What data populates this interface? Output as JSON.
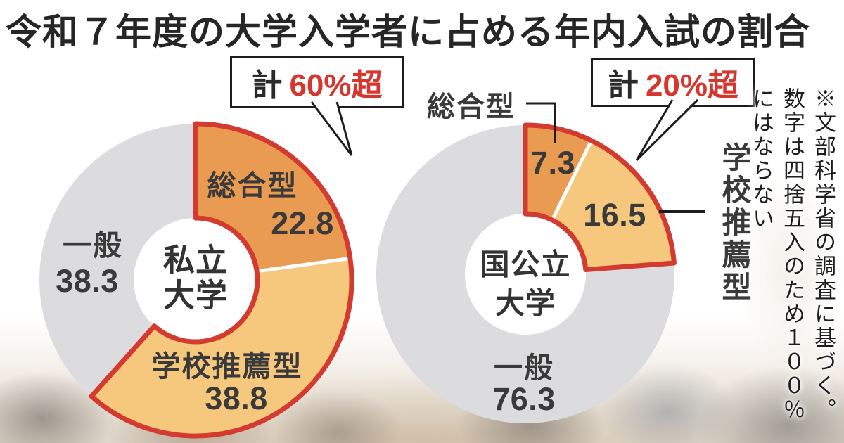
{
  "title": "令和７年度の大学入学者に占める年内入試の割合",
  "footnote_lines": [
    "※文部科学省の調査に基づく。",
    "数字は四捨五入のため１００％",
    "にはならない"
  ],
  "colors": {
    "highlight_outline": "#d43b30",
    "badge_accent": "#d5372e",
    "comprehensive_fill": "#ea9b52",
    "recommendation_fill": "#f5c87e",
    "general_fill": "#dcdcdf",
    "text": "#3a3a3a"
  },
  "chart_data": {
    "type": "pie",
    "subtype": "donut",
    "unit": "%",
    "charts": [
      {
        "id": "private",
        "name": "私立大学",
        "center_label_lines": [
          "私立",
          "大学"
        ],
        "badge": {
          "prefix": "計",
          "value": "60%超"
        },
        "segments": [
          {
            "label": "総合型",
            "value": 22.8,
            "color": "#ea9b52",
            "highlight": true
          },
          {
            "label": "学校推薦型",
            "value": 38.8,
            "color": "#f5c87e",
            "highlight": true
          },
          {
            "label": "一般",
            "value": 38.3,
            "color": "#dcdcdf",
            "highlight": false
          }
        ]
      },
      {
        "id": "national-public",
        "name": "国公立大学",
        "center_label_lines": [
          "国公立",
          "大学"
        ],
        "badge": {
          "prefix": "計",
          "value": "20%超"
        },
        "segments": [
          {
            "label": "総合型",
            "value": 7.3,
            "color": "#ea9b52",
            "highlight": true
          },
          {
            "label": "学校推薦型",
            "value": 16.5,
            "color": "#f5c87e",
            "highlight": true
          },
          {
            "label": "一般",
            "value": 76.3,
            "color": "#dcdcdf",
            "highlight": false
          }
        ]
      }
    ]
  }
}
